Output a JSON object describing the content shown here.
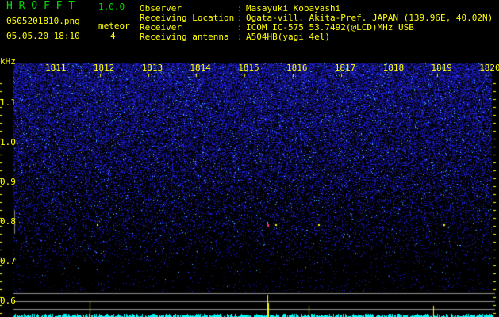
{
  "app": {
    "title": "H R O F F T",
    "version": "1.0.0"
  },
  "left_info": {
    "filename": "0505201810.png",
    "datetime": "05.05.20 18:10",
    "meteor_label": "meteor",
    "meteor_count": "4"
  },
  "station": {
    "rows": [
      {
        "label": "Observer",
        "value": "Masayuki Kobayashi"
      },
      {
        "label": "Receiving Location",
        "value": "Ogata-vill. Akita-Pref. JAPAN (139.96E, 40.02N)"
      },
      {
        "label": "Receiver",
        "value": "ICOM IC-575 53.7492(@LCD)MHz USB"
      },
      {
        "label": "Receiving antenna",
        "value": "A504HB(yagi 4el)"
      }
    ]
  },
  "chart_data": {
    "type": "heatmap",
    "ylabel": "kHz",
    "x_ticks": [
      "1811",
      "1812",
      "1813",
      "1814",
      "1815",
      "1816",
      "1817",
      "1818",
      "1819",
      "1820"
    ],
    "y_ticks": [
      "1.1",
      "1.0",
      "0.9",
      "0.8",
      "0.7",
      "0.6"
    ],
    "meteor_echoes_minutes": [
      1811.9,
      1815.6,
      1816.5,
      1819.1
    ],
    "colors": {
      "noise": "#2020ff",
      "axis": "#ffff00",
      "histogram": "#00ffff",
      "echo": "#ffff00"
    }
  }
}
